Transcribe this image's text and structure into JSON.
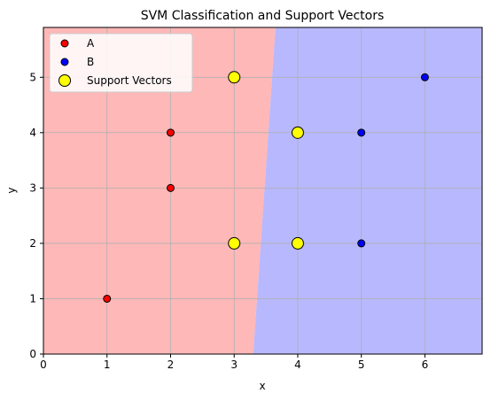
{
  "chart_data": {
    "type": "scatter",
    "title": "SVM Classification and Support Vectors",
    "xlabel": "x",
    "ylabel": "y",
    "xlim": [
      0,
      6.9
    ],
    "ylim": [
      0,
      5.9
    ],
    "x_ticks": [
      0,
      1,
      2,
      3,
      4,
      5,
      6
    ],
    "y_ticks": [
      0,
      1,
      2,
      3,
      4,
      5
    ],
    "grid": true,
    "legend_position": "top-left",
    "series": [
      {
        "name": "A",
        "color": "#ff0000",
        "points": [
          [
            1,
            1
          ],
          [
            2,
            3
          ],
          [
            2,
            4
          ],
          [
            3,
            2
          ],
          [
            3,
            5
          ]
        ]
      },
      {
        "name": "B",
        "color": "#0000ff",
        "points": [
          [
            4,
            2
          ],
          [
            4,
            4
          ],
          [
            5,
            2
          ],
          [
            5,
            4
          ],
          [
            6,
            5
          ]
        ]
      },
      {
        "name": "Support Vectors",
        "color": "#ffff00",
        "points": [
          [
            3,
            2
          ],
          [
            3,
            5
          ],
          [
            4,
            2
          ],
          [
            4,
            4
          ]
        ]
      }
    ],
    "regions": {
      "class_A_color": "#ffb8b8",
      "class_B_color": "#b8b8ff",
      "boundary_x_at_y0": 3.3,
      "boundary_x_at_ymax": 3.65
    }
  }
}
